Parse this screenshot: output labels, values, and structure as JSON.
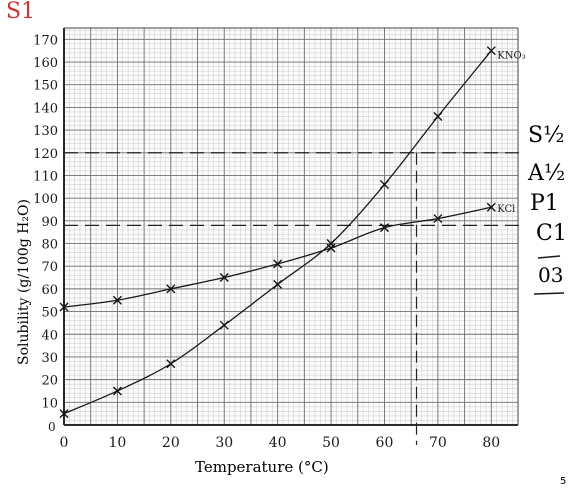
{
  "chart_data": {
    "type": "line",
    "corner_mark": "S1",
    "xlabel": "Temperature (°C)",
    "ylabel": "Solubility (g/100g H₂O)",
    "xlim": [
      0,
      85
    ],
    "ylim": [
      0,
      175
    ],
    "x_ticks": [
      0,
      10,
      20,
      30,
      40,
      50,
      60,
      70,
      80
    ],
    "y_ticks": [
      10,
      20,
      30,
      40,
      50,
      60,
      70,
      80,
      90,
      100,
      110,
      120,
      130,
      140,
      150,
      160,
      170
    ],
    "y_tick_labels": [
      "10",
      "20",
      "30",
      "40",
      "50",
      "60",
      "70",
      "80",
      "90",
      "100",
      "110",
      "120",
      "130",
      "140",
      "150",
      "160",
      "170"
    ],
    "grid": true,
    "series": [
      {
        "name": "KNO₃",
        "color": "#1a1a1a",
        "x": [
          0,
          10,
          20,
          30,
          40,
          50,
          60,
          70,
          80
        ],
        "y": [
          5,
          15,
          27,
          44,
          62,
          80,
          106,
          136,
          165
        ]
      },
      {
        "name": "KCl",
        "color": "#1a1a1a",
        "x": [
          0,
          10,
          20,
          30,
          40,
          50,
          60,
          70,
          80
        ],
        "y": [
          52,
          55,
          60,
          65,
          71,
          78,
          87,
          91,
          96
        ]
      }
    ],
    "annotations": {
      "dashed_h": [
        120,
        88
      ],
      "dashed_v": [
        66
      ],
      "marks": [
        "S½",
        "A½",
        "P1",
        "C1",
        "03"
      ],
      "page_number": "5"
    }
  }
}
